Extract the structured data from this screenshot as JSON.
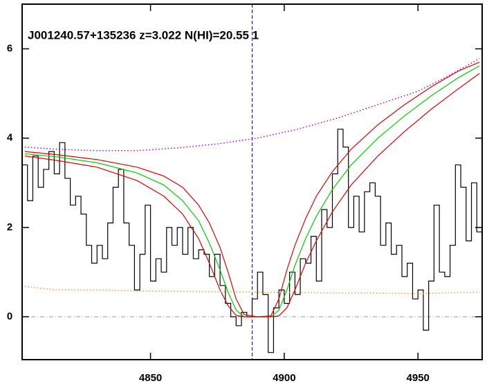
{
  "chart_data": {
    "type": "spectrum",
    "title": "J001240.57+135236 z=3.022 N(HI)=20.55 1",
    "xlim": [
      4802,
      4974
    ],
    "ylim": [
      -0.96,
      7.0
    ],
    "xticks": [
      4850,
      4900,
      4950
    ],
    "yticks": [
      0,
      2,
      4,
      6
    ],
    "zero_line_color": "#999999",
    "vline": 4888,
    "vline_color": "#0000cc",
    "series": [
      {
        "color": "#000000",
        "style": "step",
        "x": [
          4803,
          4805,
          4807,
          4809,
          4811,
          4813,
          4815,
          4817,
          4819,
          4821,
          4823,
          4825,
          4827,
          4829,
          4831,
          4833,
          4835,
          4837,
          4839,
          4841,
          4843,
          4845,
          4847,
          4849,
          4851,
          4853,
          4855,
          4857,
          4859,
          4861,
          4863,
          4865,
          4867,
          4869,
          4871,
          4873,
          4875,
          4877,
          4879,
          4881,
          4883,
          4885,
          4887,
          4889,
          4891,
          4893,
          4895,
          4897,
          4899,
          4901,
          4903,
          4905,
          4907,
          4909,
          4911,
          4913,
          4915,
          4917,
          4919,
          4921,
          4923,
          4925,
          4927,
          4929,
          4931,
          4933,
          4935,
          4937,
          4939,
          4941,
          4943,
          4945,
          4947,
          4949,
          4951,
          4953,
          4955,
          4957,
          4959,
          4961,
          4963,
          4965,
          4967,
          4969,
          4971,
          4973
        ],
        "values": [
          3.4,
          2.6,
          3.6,
          2.9,
          3.3,
          3.7,
          3.2,
          3.9,
          3.1,
          2.5,
          2.7,
          2.3,
          1.6,
          1.2,
          1.6,
          1.3,
          2.1,
          2.9,
          3.3,
          2.1,
          1.6,
          0.6,
          1.4,
          2.5,
          0.8,
          1.3,
          1.0,
          2.0,
          1.6,
          2.0,
          1.4,
          2.0,
          1.3,
          1.5,
          1.4,
          0.9,
          1.4,
          0.7,
          0.3,
          0.0,
          -0.2,
          0.1,
          0.0,
          0.4,
          1.0,
          0.5,
          -0.8,
          0.2,
          0.6,
          0.3,
          1.0,
          0.5,
          1.3,
          1.2,
          1.8,
          0.8,
          2.4,
          2.0,
          3.2,
          4.2,
          3.8,
          2.0,
          2.7,
          1.9,
          2.8,
          3.0,
          2.7,
          1.6,
          2.1,
          1.4,
          1.6,
          0.9,
          1.2,
          0.4,
          0.6,
          -0.3,
          0.8,
          2.5,
          1.0,
          0.9,
          1.6,
          3.4,
          2.9,
          1.7,
          3.0,
          1.9
        ]
      },
      {
        "color": "#00cc00",
        "style": "solid",
        "x": [
          4803,
          4815,
          4830,
          4845,
          4855,
          4862,
          4868,
          4872,
          4876,
          4879,
          4882,
          4885,
          4890,
          4895,
          4898,
          4901,
          4904,
          4908,
          4912,
          4918,
          4925,
          4935,
          4945,
          4955,
          4965,
          4973
        ],
        "values": [
          3.65,
          3.58,
          3.45,
          3.22,
          2.95,
          2.6,
          2.15,
          1.65,
          1.05,
          0.55,
          0.15,
          0.0,
          0.0,
          0.0,
          0.15,
          0.6,
          1.15,
          1.75,
          2.25,
          2.85,
          3.4,
          4.0,
          4.5,
          4.95,
          5.35,
          5.62
        ]
      },
      {
        "color": "#dd0000",
        "style": "solid",
        "x": [
          4803,
          4815,
          4830,
          4845,
          4855,
          4862,
          4868,
          4872,
          4876,
          4879,
          4882,
          4885,
          4890,
          4895,
          4898,
          4901,
          4904,
          4908,
          4912,
          4918,
          4925,
          4935,
          4945,
          4955,
          4965,
          4973
        ],
        "values": [
          3.7,
          3.63,
          3.52,
          3.35,
          3.15,
          2.9,
          2.5,
          2.1,
          1.55,
          1.0,
          0.4,
          0.05,
          0.0,
          0.02,
          0.4,
          1.05,
          1.6,
          2.2,
          2.7,
          3.25,
          3.75,
          4.3,
          4.75,
          5.15,
          5.5,
          5.7
        ]
      },
      {
        "color": "#dd0000",
        "style": "solid",
        "x": [
          4803,
          4815,
          4830,
          4845,
          4855,
          4862,
          4868,
          4872,
          4876,
          4879,
          4882,
          4885,
          4890,
          4895,
          4898,
          4901,
          4904,
          4908,
          4912,
          4918,
          4925,
          4935,
          4945,
          4955,
          4965,
          4973
        ],
        "values": [
          3.6,
          3.5,
          3.35,
          3.05,
          2.7,
          2.3,
          1.75,
          1.2,
          0.6,
          0.25,
          0.03,
          0.0,
          0.0,
          0.0,
          0.02,
          0.2,
          0.6,
          1.2,
          1.7,
          2.35,
          2.95,
          3.6,
          4.15,
          4.65,
          5.1,
          5.45
        ]
      },
      {
        "color": "#a000ff",
        "style": "dotted",
        "x": [
          4803,
          4815,
          4830,
          4845,
          4860,
          4875,
          4890,
          4905,
          4920,
          4935,
          4950,
          4960,
          4973
        ],
        "values": [
          3.8,
          3.75,
          3.72,
          3.72,
          3.78,
          3.87,
          4.0,
          4.2,
          4.45,
          4.75,
          5.05,
          5.35,
          5.78
        ]
      },
      {
        "color": "#ff9933",
        "style": "dotted",
        "x": [
          4803,
          4815,
          4830,
          4845,
          4860,
          4875,
          4890,
          4905,
          4920,
          4935,
          4950,
          4973
        ],
        "values": [
          0.68,
          0.6,
          0.6,
          0.58,
          0.57,
          0.56,
          0.55,
          0.54,
          0.53,
          0.53,
          0.52,
          0.55
        ]
      }
    ]
  }
}
